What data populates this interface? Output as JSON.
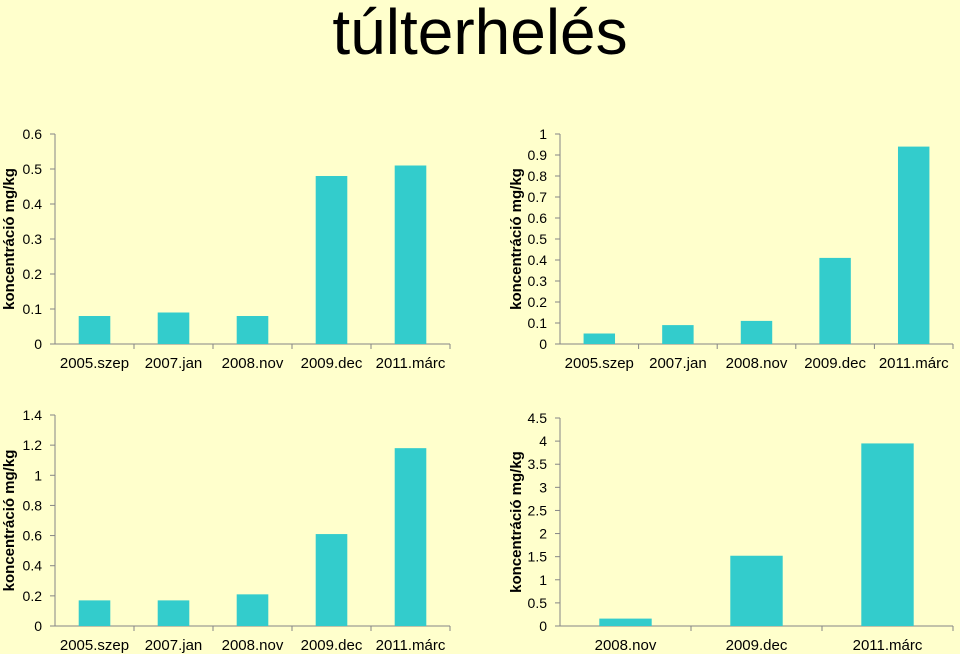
{
  "title": "túlterhelés",
  "bar_color": "#33CCCC",
  "background": "#FFFFCC",
  "chart_data": [
    {
      "type": "bar",
      "ylabel": "koncentráció  mg/kg",
      "ylim": [
        0,
        0.6
      ],
      "yticks": [
        "0",
        "0.1",
        "0.2",
        "0.3",
        "0.4",
        "0.5",
        "0.6"
      ],
      "categories": [
        "2005.szep",
        "2007.jan",
        "2008.nov",
        "2009.dec",
        "2011.márc"
      ],
      "values": [
        0.08,
        0.09,
        0.08,
        0.48,
        0.51
      ]
    },
    {
      "type": "bar",
      "ylabel": "koncentráció  mg/kg",
      "ylim": [
        0,
        1
      ],
      "yticks": [
        "0",
        "0.1",
        "0.2",
        "0.3",
        "0.4",
        "0.5",
        "0.6",
        "0.7",
        "0.8",
        "0.9",
        "1"
      ],
      "categories": [
        "2005.szep",
        "2007.jan",
        "2008.nov",
        "2009.dec",
        "2011.márc"
      ],
      "values": [
        0.05,
        0.09,
        0.11,
        0.41,
        0.94
      ]
    },
    {
      "type": "bar",
      "ylabel": "koncentráció  mg/kg",
      "ylim": [
        0,
        1.4
      ],
      "yticks": [
        "0",
        "0.2",
        "0.4",
        "0.6",
        "0.8",
        "1",
        "1.2",
        "1.4"
      ],
      "categories": [
        "2005.szep",
        "2007.jan",
        "2008.nov",
        "2009.dec",
        "2011.márc"
      ],
      "values": [
        0.17,
        0.17,
        0.21,
        0.61,
        1.18
      ]
    },
    {
      "type": "bar",
      "ylabel": "koncentráció  mg/kg",
      "ylim": [
        0,
        4.5
      ],
      "yticks": [
        "0",
        "0.5",
        "1",
        "1.5",
        "2",
        "2.5",
        "3",
        "3.5",
        "4",
        "4.5"
      ],
      "categories": [
        "2008.nov",
        "2009.dec",
        "2011.márc"
      ],
      "values": [
        0.16,
        1.52,
        3.95
      ]
    }
  ]
}
